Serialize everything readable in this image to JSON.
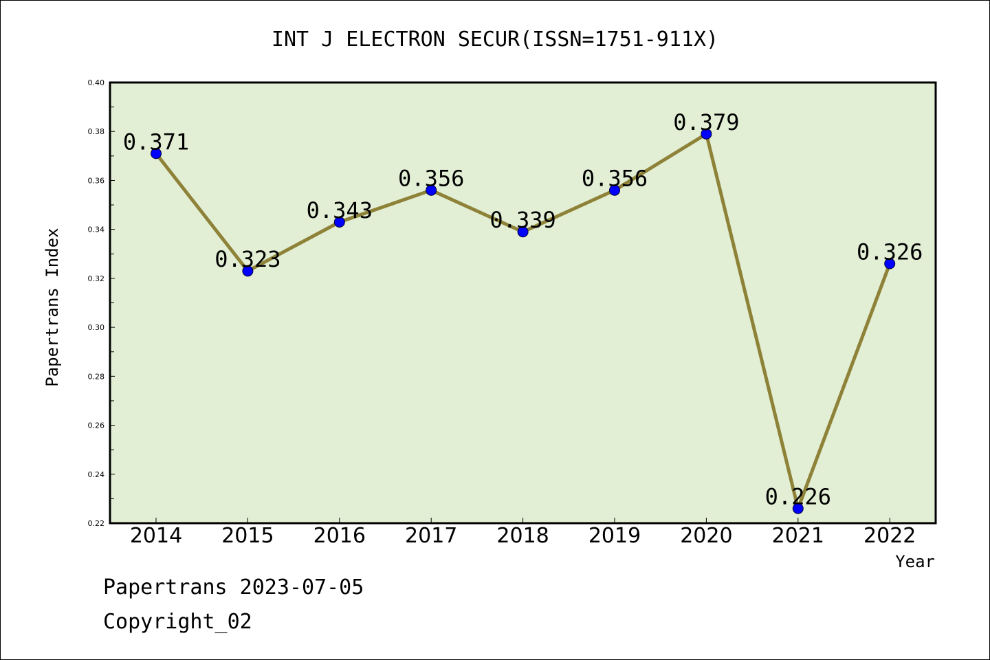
{
  "chart_data": {
    "type": "line",
    "title": "INT J ELECTRON SECUR(ISSN=1751-911X)",
    "xlabel": "Year",
    "ylabel": "Papertrans Index",
    "categories": [
      "2014",
      "2015",
      "2016",
      "2017",
      "2018",
      "2019",
      "2020",
      "2021",
      "2022"
    ],
    "values": [
      0.371,
      0.323,
      0.343,
      0.356,
      0.339,
      0.356,
      0.379,
      0.226,
      0.326
    ],
    "data_labels": [
      "0.371",
      "0.323",
      "0.343",
      "0.356",
      "0.339",
      "0.356",
      "0.379",
      "0.226",
      "0.326"
    ],
    "ylim": [
      0.22,
      0.4
    ],
    "yticks": [
      "0.22",
      "0.24",
      "0.26",
      "0.28",
      "0.30",
      "0.32",
      "0.34",
      "0.36",
      "0.38",
      "0.40"
    ],
    "grid": false,
    "colors": {
      "plot_background": "#e2efd5",
      "line": "#8e8238",
      "marker": "#0000ff"
    }
  },
  "footer": {
    "source": "Papertrans 2023-07-05",
    "copyright": "Copyright_02"
  }
}
